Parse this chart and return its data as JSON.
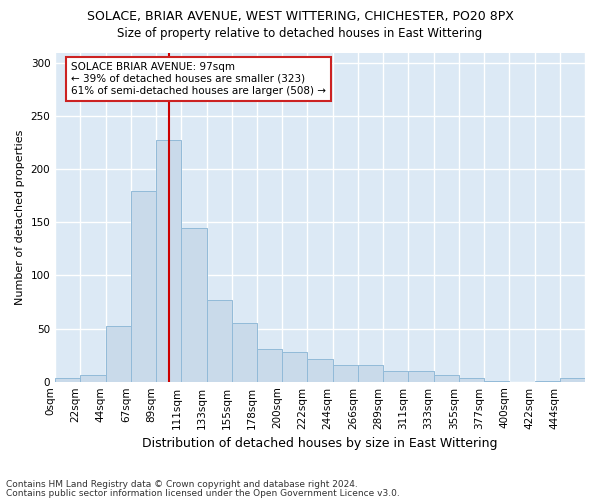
{
  "title": "SOLACE, BRIAR AVENUE, WEST WITTERING, CHICHESTER, PO20 8PX",
  "subtitle": "Size of property relative to detached houses in East Wittering",
  "xlabel": "Distribution of detached houses by size in East Wittering",
  "ylabel": "Number of detached properties",
  "footnote1": "Contains HM Land Registry data © Crown copyright and database right 2024.",
  "footnote2": "Contains public sector information licensed under the Open Government Licence v3.0.",
  "bin_labels": [
    "0sqm",
    "22sqm",
    "44sqm",
    "67sqm",
    "89sqm",
    "111sqm",
    "133sqm",
    "155sqm",
    "178sqm",
    "200sqm",
    "222sqm",
    "244sqm",
    "266sqm",
    "289sqm",
    "311sqm",
    "333sqm",
    "355sqm",
    "377sqm",
    "400sqm",
    "422sqm",
    "444sqm"
  ],
  "bin_values": [
    3,
    6,
    52,
    180,
    228,
    145,
    77,
    55,
    31,
    28,
    21,
    16,
    16,
    10,
    10,
    6,
    3,
    1,
    0,
    1,
    3
  ],
  "bar_color": "#c9daea",
  "bar_edge_color": "#92bad8",
  "fig_color": "#ffffff",
  "plot_bg_color": "#dce9f5",
  "grid_color": "#ffffff",
  "vline_color": "#cc0000",
  "vline_x": 4.5,
  "annotation_text": "SOLACE BRIAR AVENUE: 97sqm\n← 39% of detached houses are smaller (323)\n61% of semi-detached houses are larger (508) →",
  "annotation_box_facecolor": "#ffffff",
  "annotation_box_edgecolor": "#cc2222",
  "ylim": [
    0,
    310
  ],
  "yticks": [
    0,
    50,
    100,
    150,
    200,
    250,
    300
  ],
  "title_fontsize": 9,
  "subtitle_fontsize": 8.5,
  "xlabel_fontsize": 9,
  "ylabel_fontsize": 8,
  "tick_fontsize": 7.5,
  "annot_fontsize": 7.5,
  "footnote_fontsize": 6.5
}
